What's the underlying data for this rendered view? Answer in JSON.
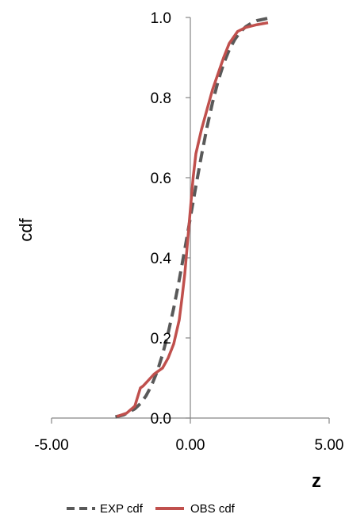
{
  "chart_data": {
    "type": "line",
    "title": "",
    "xlabel": "z",
    "ylabel": "cdf",
    "xlim": [
      -5,
      5
    ],
    "ylim": [
      0,
      1
    ],
    "x_ticks": [
      "-5.00",
      "0.00",
      "5.00"
    ],
    "y_ticks": [
      "0.0",
      "0.2",
      "0.4",
      "0.6",
      "0.8",
      "1.0"
    ],
    "grid": false,
    "legend_position": "bottom",
    "series": [
      {
        "name": "EXP cdf",
        "color": "#595959",
        "dash": "dashed",
        "x": [
          -2.7,
          -2.4,
          -2.0,
          -1.8,
          -1.6,
          -1.4,
          -1.2,
          -1.0,
          -0.8,
          -0.6,
          -0.4,
          -0.2,
          0.0,
          0.2,
          0.4,
          0.6,
          0.8,
          1.0,
          1.2,
          1.4,
          1.6,
          1.8,
          2.0,
          2.2,
          2.4,
          2.6,
          2.8
        ],
        "y": [
          0.003,
          0.008,
          0.023,
          0.036,
          0.055,
          0.081,
          0.115,
          0.159,
          0.212,
          0.274,
          0.345,
          0.421,
          0.5,
          0.579,
          0.655,
          0.726,
          0.788,
          0.841,
          0.885,
          0.919,
          0.945,
          0.964,
          0.977,
          0.986,
          0.992,
          0.995,
          0.998
        ]
      },
      {
        "name": "OBS cdf",
        "color": "#c0504d",
        "dash": "solid",
        "x": [
          -2.65,
          -2.3,
          -2.0,
          -1.8,
          -1.7,
          -1.5,
          -1.3,
          -1.0,
          -0.8,
          -0.6,
          -0.4,
          -0.3,
          -0.2,
          -0.1,
          0.0,
          0.1,
          0.2,
          0.4,
          0.6,
          0.8,
          1.0,
          1.2,
          1.4,
          1.7,
          2.0,
          2.4,
          2.8
        ],
        "y": [
          0.004,
          0.012,
          0.03,
          0.075,
          0.08,
          0.095,
          0.11,
          0.125,
          0.15,
          0.185,
          0.245,
          0.3,
          0.36,
          0.44,
          0.52,
          0.6,
          0.66,
          0.72,
          0.77,
          0.82,
          0.86,
          0.9,
          0.935,
          0.965,
          0.975,
          0.982,
          0.987
        ]
      }
    ]
  }
}
